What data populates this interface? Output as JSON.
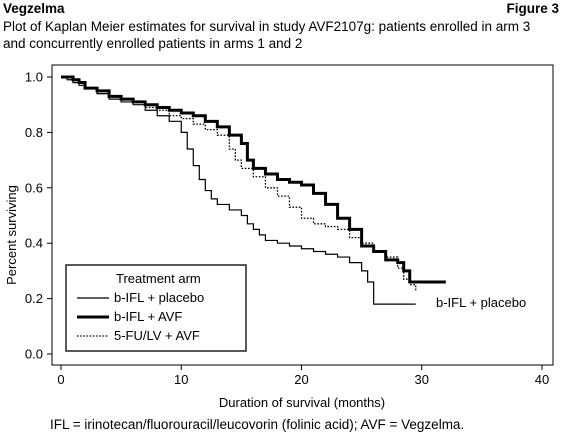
{
  "header": {
    "brand": "Vegzelma",
    "figure_label": "Figure 3",
    "subtitle": "Plot of Kaplan Meier estimates for survival in study AVF2107g: patients enrolled in arm 3 and concurrently enrolled patients in arms 1 and 2"
  },
  "footnote": "IFL = irinotecan/fluorouracil/leucovorin (folinic acid); AVF = Vegzelma.",
  "chart_data": {
    "type": "line",
    "step": true,
    "title": "",
    "xlabel": "Duration of survival (months)",
    "ylabel": "Percent surviving",
    "xlim": [
      0,
      40
    ],
    "ylim": [
      0,
      1.0
    ],
    "xticks": [
      0,
      10,
      20,
      30,
      40
    ],
    "yticks": [
      0.0,
      0.2,
      0.4,
      0.6,
      0.8,
      1.0
    ],
    "ytick_labels": [
      "0.0",
      "0.2",
      "0.4",
      "0.6",
      "0.8",
      "1.0"
    ],
    "grid": false,
    "legend": {
      "title": "Treatment arm",
      "placement": "lower-left"
    },
    "annotation": "b-IFL + placebo",
    "series": [
      {
        "name": "b-IFL + placebo",
        "style": "thin-solid",
        "points": [
          [
            0,
            1.0
          ],
          [
            0.5,
            0.99
          ],
          [
            1,
            0.98
          ],
          [
            1.5,
            0.97
          ],
          [
            2,
            0.96
          ],
          [
            3,
            0.94
          ],
          [
            4,
            0.92
          ],
          [
            5,
            0.91
          ],
          [
            6,
            0.9
          ],
          [
            7,
            0.88
          ],
          [
            8,
            0.86
          ],
          [
            9,
            0.84
          ],
          [
            10,
            0.8
          ],
          [
            10.5,
            0.74
          ],
          [
            11,
            0.68
          ],
          [
            11.5,
            0.63
          ],
          [
            12,
            0.59
          ],
          [
            12.5,
            0.56
          ],
          [
            13,
            0.54
          ],
          [
            14,
            0.52
          ],
          [
            15,
            0.5
          ],
          [
            15.5,
            0.47
          ],
          [
            16,
            0.45
          ],
          [
            16.5,
            0.43
          ],
          [
            17,
            0.41
          ],
          [
            18,
            0.4
          ],
          [
            19,
            0.39
          ],
          [
            20,
            0.38
          ],
          [
            21,
            0.37
          ],
          [
            22,
            0.36
          ],
          [
            23,
            0.35
          ],
          [
            24,
            0.33
          ],
          [
            25,
            0.3
          ],
          [
            25.5,
            0.26
          ],
          [
            26,
            0.22
          ],
          [
            26,
            0.18
          ],
          [
            29.5,
            0.18
          ]
        ]
      },
      {
        "name": "b-IFL + AVF",
        "style": "thick-solid",
        "points": [
          [
            0,
            1.0
          ],
          [
            0.5,
            1.0
          ],
          [
            1,
            0.99
          ],
          [
            1.5,
            0.98
          ],
          [
            2,
            0.96
          ],
          [
            3,
            0.95
          ],
          [
            4,
            0.93
          ],
          [
            5,
            0.92
          ],
          [
            6,
            0.91
          ],
          [
            7,
            0.9
          ],
          [
            8,
            0.89
          ],
          [
            9,
            0.88
          ],
          [
            10,
            0.87
          ],
          [
            11,
            0.86
          ],
          [
            12,
            0.84
          ],
          [
            13,
            0.82
          ],
          [
            14,
            0.79
          ],
          [
            15,
            0.76
          ],
          [
            15.5,
            0.7
          ],
          [
            16,
            0.67
          ],
          [
            17,
            0.65
          ],
          [
            18,
            0.63
          ],
          [
            19,
            0.62
          ],
          [
            20,
            0.61
          ],
          [
            21,
            0.58
          ],
          [
            22,
            0.54
          ],
          [
            23,
            0.49
          ],
          [
            24,
            0.45
          ],
          [
            25,
            0.39
          ],
          [
            26,
            0.37
          ],
          [
            27,
            0.34
          ],
          [
            28,
            0.33
          ],
          [
            28.5,
            0.3
          ],
          [
            29,
            0.26
          ],
          [
            32,
            0.26
          ]
        ]
      },
      {
        "name": "5-FU/LV + AVF",
        "style": "dotted",
        "points": [
          [
            0,
            1.0
          ],
          [
            1,
            0.98
          ],
          [
            2,
            0.96
          ],
          [
            3,
            0.94
          ],
          [
            4,
            0.93
          ],
          [
            5,
            0.92
          ],
          [
            6,
            0.91
          ],
          [
            7,
            0.89
          ],
          [
            8,
            0.88
          ],
          [
            9,
            0.86
          ],
          [
            10,
            0.85
          ],
          [
            11,
            0.83
          ],
          [
            12,
            0.81
          ],
          [
            13,
            0.79
          ],
          [
            14,
            0.74
          ],
          [
            14.5,
            0.7
          ],
          [
            15,
            0.67
          ],
          [
            16,
            0.64
          ],
          [
            17,
            0.6
          ],
          [
            18,
            0.57
          ],
          [
            19,
            0.53
          ],
          [
            20,
            0.49
          ],
          [
            21,
            0.47
          ],
          [
            22,
            0.46
          ],
          [
            23,
            0.45
          ],
          [
            24,
            0.42
          ],
          [
            25,
            0.4
          ],
          [
            26,
            0.37
          ],
          [
            27,
            0.35
          ],
          [
            28,
            0.31
          ],
          [
            28.5,
            0.27
          ],
          [
            29,
            0.25
          ],
          [
            29.5,
            0.23
          ]
        ]
      }
    ]
  }
}
